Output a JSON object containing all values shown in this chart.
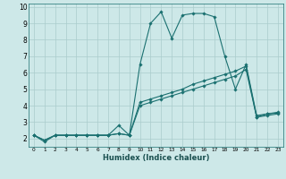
{
  "bg_color": "#cde8e8",
  "grid_color": "#aacccc",
  "line_color": "#1a7070",
  "xlabel": "Humidex (Indice chaleur)",
  "xlim": [
    -0.5,
    23.5
  ],
  "ylim": [
    1.5,
    10.2
  ],
  "yticks": [
    2,
    3,
    4,
    5,
    6,
    7,
    8,
    9,
    10
  ],
  "xticks": [
    0,
    1,
    2,
    3,
    4,
    5,
    6,
    7,
    8,
    9,
    10,
    11,
    12,
    13,
    14,
    15,
    16,
    17,
    18,
    19,
    20,
    21,
    22,
    23
  ],
  "line1_x": [
    0,
    1,
    2,
    3,
    4,
    5,
    6,
    7,
    8,
    9,
    10,
    11,
    12,
    13,
    14,
    15,
    16,
    17,
    18,
    19,
    20,
    21,
    22,
    23
  ],
  "line1_y": [
    2.2,
    1.8,
    2.2,
    2.2,
    2.2,
    2.2,
    2.2,
    2.2,
    2.8,
    2.2,
    6.5,
    9.0,
    9.7,
    8.1,
    9.5,
    9.6,
    9.6,
    9.4,
    7.0,
    5.0,
    6.5,
    3.4,
    3.5,
    3.6
  ],
  "line2_x": [
    0,
    1,
    2,
    3,
    4,
    5,
    6,
    7,
    8,
    9,
    10,
    11,
    12,
    13,
    14,
    15,
    16,
    17,
    18,
    19,
    20,
    21,
    22,
    23
  ],
  "line2_y": [
    2.2,
    1.9,
    2.2,
    2.2,
    2.2,
    2.2,
    2.2,
    2.2,
    2.3,
    2.2,
    4.2,
    4.4,
    4.6,
    4.8,
    5.0,
    5.3,
    5.5,
    5.7,
    5.9,
    6.1,
    6.4,
    3.3,
    3.5,
    3.55
  ],
  "line3_x": [
    0,
    1,
    2,
    3,
    4,
    5,
    6,
    7,
    8,
    9,
    10,
    11,
    12,
    13,
    14,
    15,
    16,
    17,
    18,
    19,
    20,
    21,
    22,
    23
  ],
  "line3_y": [
    2.2,
    1.9,
    2.2,
    2.2,
    2.2,
    2.2,
    2.2,
    2.2,
    2.3,
    2.2,
    4.0,
    4.2,
    4.4,
    4.6,
    4.8,
    5.0,
    5.2,
    5.4,
    5.6,
    5.8,
    6.2,
    3.3,
    3.4,
    3.5
  ],
  "xlabel_fontsize": 6.0,
  "tick_fontsize_x": 4.2,
  "tick_fontsize_y": 5.5,
  "linewidth": 0.8,
  "markersize": 1.8
}
